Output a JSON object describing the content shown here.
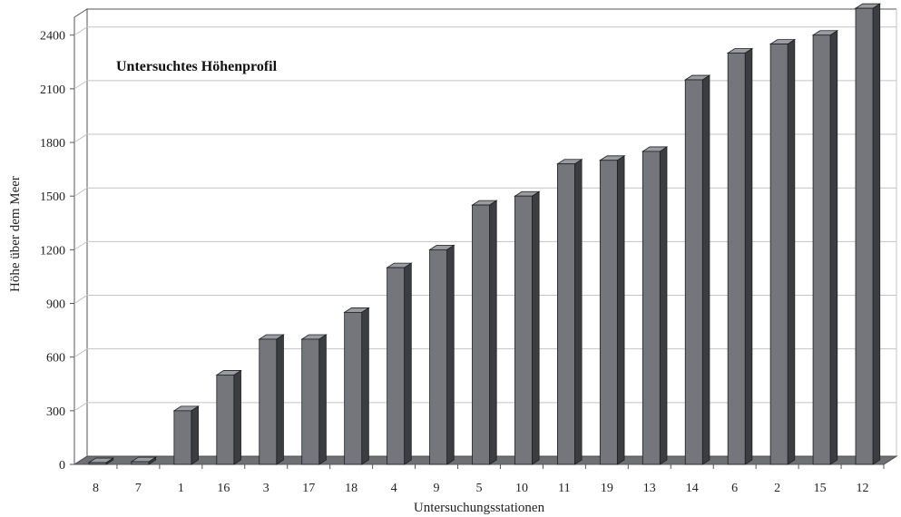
{
  "chart_data": {
    "type": "bar",
    "annotation": "Untersuchtes Höhenprofil",
    "xlabel": "Untersuchungsstationen",
    "ylabel": "Höhe über dem Meer",
    "ylim": [
      0,
      2500
    ],
    "yticks": [
      0,
      300,
      600,
      900,
      1200,
      1500,
      1800,
      2100,
      2400
    ],
    "grid": true,
    "three_d": true,
    "categories": [
      "8",
      "7",
      "1",
      "16",
      "3",
      "17",
      "18",
      "4",
      "9",
      "5",
      "10",
      "11",
      "19",
      "13",
      "14",
      "6",
      "2",
      "15",
      "12"
    ],
    "values": [
      0,
      15,
      300,
      500,
      700,
      700,
      850,
      1100,
      1200,
      1450,
      1500,
      1680,
      1700,
      1750,
      2150,
      2300,
      2350,
      2400,
      2550
    ],
    "colors": {
      "bar_front": "#74767c",
      "bar_side": "#3c3d41",
      "bar_top": "#9a9ca2",
      "floor": "#6f7074",
      "grid": "#c4c4c4",
      "frame": "#555555"
    }
  }
}
